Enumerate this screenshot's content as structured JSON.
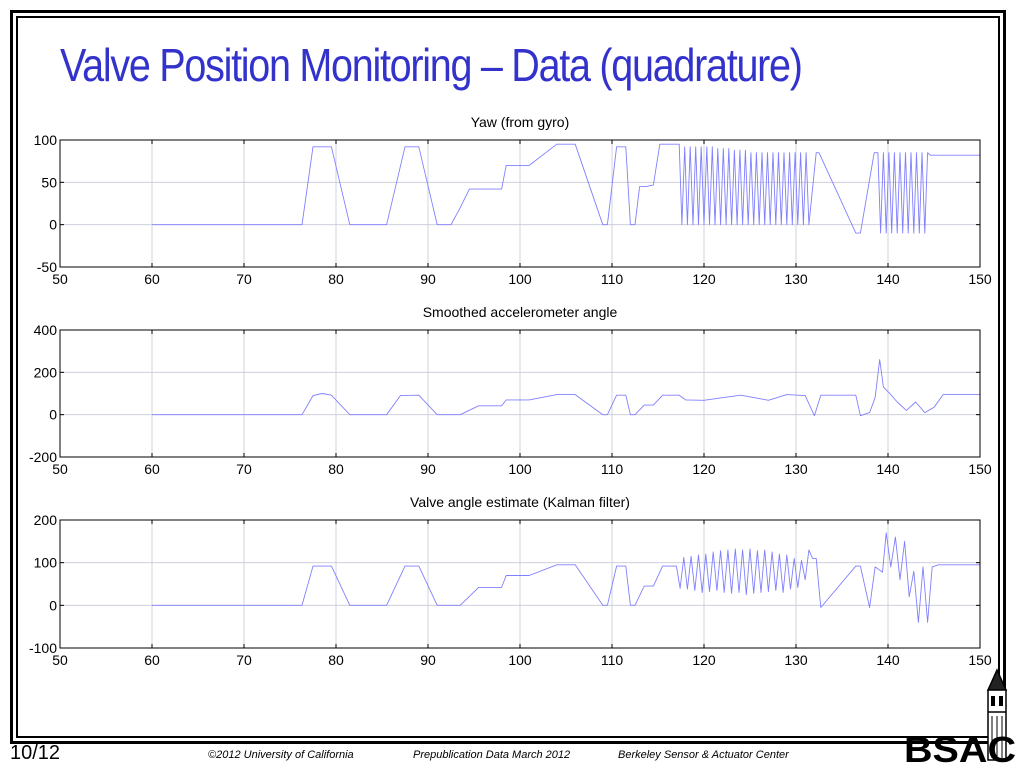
{
  "slide": {
    "title": "Valve Position Monitoring – Data (quadrature)",
    "page": "10/12",
    "footer": {
      "copyright": "©2012 University of California",
      "note": "Prepublication Data March 2012",
      "center": "Berkeley Sensor & Actuator Center"
    },
    "logo_text": "BSAC"
  },
  "colors": {
    "title": "#3333cc",
    "series": "#8080ff",
    "grid": "#c8c8d8",
    "frame": "#000000"
  },
  "chart_data": [
    {
      "type": "line",
      "title": "Yaw (from gyro)",
      "xlabel": "",
      "ylabel": "",
      "xlim": [
        50,
        150
      ],
      "ylim": [
        -50,
        100
      ],
      "xticks": [
        50,
        60,
        70,
        80,
        90,
        100,
        110,
        120,
        130,
        140,
        150
      ],
      "yticks": [
        -50,
        0,
        50,
        100
      ],
      "grid": true,
      "series": [
        {
          "x": [
            60,
            76.3,
            77.5,
            79.5,
            81.5,
            85.5,
            87.5,
            89,
            91,
            92.5,
            93.5,
            94.5,
            95.5,
            98,
            98.5,
            101,
            104,
            106,
            109,
            109.5,
            110.5,
            111.5,
            112,
            112.5,
            113,
            113.7,
            114.5,
            115.2,
            116.2,
            117.3,
            117.6,
            117.9,
            118.2,
            118.5,
            118.8,
            119.1,
            119.4,
            119.7,
            120.0,
            120.3,
            120.6,
            120.9,
            121.2,
            121.5,
            121.8,
            122.1,
            122.4,
            122.7,
            123.0,
            123.3,
            123.6,
            123.9,
            124.2,
            124.5,
            124.8,
            125.1,
            125.4,
            125.7,
            126.0,
            126.3,
            126.6,
            126.9,
            127.2,
            127.5,
            127.8,
            128.1,
            128.4,
            128.7,
            129.0,
            129.3,
            129.6,
            129.9,
            130.2,
            130.5,
            130.8,
            131.1,
            131.4,
            132.2,
            132.5,
            136.5,
            137,
            138.5,
            138.9,
            139.2,
            139.5,
            139.8,
            140.1,
            140.4,
            140.7,
            141.0,
            141.3,
            141.6,
            141.9,
            142.2,
            142.5,
            142.8,
            143.1,
            143.4,
            143.7,
            144.0,
            144.3,
            144.6,
            145.0,
            150
          ],
          "y": [
            0,
            0,
            92,
            92,
            0,
            0,
            92,
            92,
            0,
            0,
            20,
            42,
            42,
            42,
            70,
            70,
            95,
            95,
            0,
            0,
            92,
            92,
            0,
            0,
            45,
            45,
            47,
            95,
            95,
            95,
            0,
            92,
            0,
            92,
            0,
            92,
            0,
            92,
            0,
            92,
            0,
            92,
            0,
            90,
            0,
            90,
            0,
            90,
            0,
            88,
            0,
            88,
            0,
            88,
            0,
            85,
            0,
            85,
            0,
            85,
            0,
            85,
            0,
            85,
            0,
            85,
            0,
            85,
            0,
            85,
            0,
            85,
            0,
            85,
            0,
            85,
            0,
            85,
            85,
            -10,
            -10,
            85,
            85,
            -10,
            85,
            -10,
            85,
            -10,
            85,
            -10,
            85,
            -10,
            85,
            -10,
            85,
            -10,
            85,
            -10,
            85,
            -10,
            85,
            82,
            82,
            82
          ]
        }
      ]
    },
    {
      "type": "line",
      "title": "Smoothed accelerometer angle",
      "xlabel": "",
      "ylabel": "",
      "xlim": [
        50,
        150
      ],
      "ylim": [
        -200,
        400
      ],
      "xticks": [
        50,
        60,
        70,
        80,
        90,
        100,
        110,
        120,
        130,
        140,
        150
      ],
      "yticks": [
        -200,
        0,
        200,
        400
      ],
      "grid": true,
      "series": [
        {
          "x": [
            60,
            76.3,
            77.5,
            78.5,
            79.5,
            81.5,
            85.5,
            87,
            89,
            91,
            93.5,
            95.5,
            98,
            98.5,
            101,
            104,
            106,
            109,
            109.5,
            110.5,
            111.5,
            112,
            112.5,
            113.5,
            114.5,
            115.5,
            117.3,
            118,
            120,
            122,
            124,
            125.5,
            127,
            129,
            131,
            132,
            132.7,
            136.5,
            137,
            138,
            138.6,
            139.1,
            139.5,
            140.2,
            141,
            142,
            143,
            144,
            145,
            146,
            150
          ],
          "y": [
            0,
            0,
            90,
            100,
            92,
            0,
            0,
            90,
            92,
            0,
            0,
            42,
            42,
            70,
            70,
            95,
            95,
            0,
            0,
            92,
            92,
            0,
            0,
            45,
            45,
            92,
            92,
            70,
            68,
            80,
            92,
            80,
            68,
            95,
            90,
            -5,
            92,
            92,
            -5,
            10,
            80,
            260,
            130,
            100,
            60,
            20,
            60,
            10,
            35,
            95,
            95
          ]
        }
      ]
    },
    {
      "type": "line",
      "title": "Valve angle estimate (Kalman filter)",
      "xlabel": "",
      "ylabel": "",
      "xlim": [
        50,
        150
      ],
      "ylim": [
        -100,
        200
      ],
      "xticks": [
        50,
        60,
        70,
        80,
        90,
        100,
        110,
        120,
        130,
        140,
        150
      ],
      "yticks": [
        -100,
        0,
        100,
        200
      ],
      "grid": true,
      "series": [
        {
          "x": [
            60,
            76.3,
            77.5,
            79.5,
            81.5,
            85.5,
            87.5,
            89,
            91,
            93.5,
            95.5,
            98,
            98.5,
            101,
            104,
            106,
            109,
            109.5,
            110.5,
            111.5,
            112,
            112.5,
            113.5,
            114.5,
            115.5,
            117.0,
            117.4,
            117.8,
            118.2,
            118.6,
            119.0,
            119.4,
            119.8,
            120.2,
            120.6,
            121.0,
            121.4,
            121.8,
            122.2,
            122.6,
            123.0,
            123.4,
            123.8,
            124.2,
            124.6,
            125.0,
            125.4,
            125.8,
            126.2,
            126.6,
            127.0,
            127.4,
            127.8,
            128.2,
            128.6,
            129.0,
            129.4,
            129.8,
            130.2,
            130.6,
            131.0,
            131.4,
            131.8,
            132.2,
            132.7,
            136.5,
            137,
            138,
            138.6,
            139.4,
            139.8,
            140.3,
            140.8,
            141.3,
            141.8,
            142.3,
            142.8,
            143.3,
            143.8,
            144.3,
            144.8,
            145.5,
            147,
            150
          ],
          "y": [
            0,
            0,
            92,
            92,
            0,
            0,
            92,
            92,
            0,
            0,
            42,
            42,
            70,
            70,
            95,
            95,
            0,
            0,
            92,
            92,
            0,
            0,
            45,
            45,
            92,
            92,
            40,
            112,
            38,
            115,
            35,
            118,
            30,
            120,
            32,
            125,
            35,
            128,
            30,
            130,
            28,
            132,
            30,
            130,
            25,
            132,
            28,
            128,
            30,
            130,
            32,
            125,
            35,
            120,
            30,
            118,
            38,
            110,
            42,
            105,
            60,
            130,
            110,
            110,
            -5,
            92,
            92,
            -5,
            90,
            78,
            170,
            90,
            160,
            60,
            150,
            20,
            80,
            -40,
            90,
            -40,
            90,
            95,
            95,
            95
          ]
        }
      ]
    }
  ]
}
